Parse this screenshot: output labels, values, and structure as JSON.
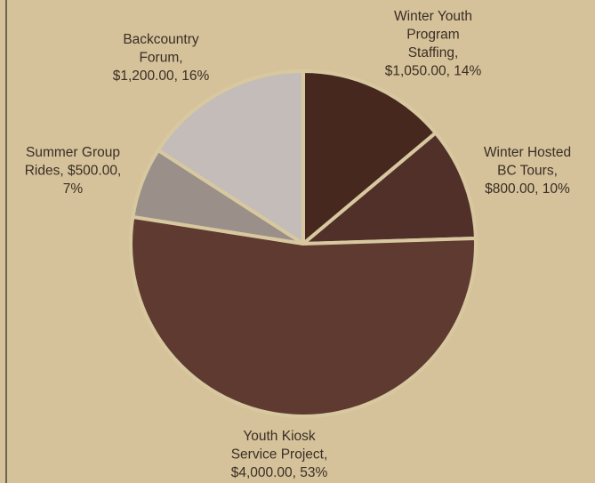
{
  "chart_data": {
    "type": "pie",
    "title": "",
    "slices": [
      {
        "label": "Winter Youth Program Staffing",
        "value": 1050.0,
        "percent": 14,
        "color": "#46281f",
        "label_lines": [
          "Winter Youth",
          "Program",
          "Staffing,",
          "$1,050.00, 14%"
        ]
      },
      {
        "label": "Winter Hosted BC Tours",
        "value": 800.0,
        "percent": 10,
        "color": "#52302a",
        "label_lines": [
          "Winter Hosted",
          "BC Tours,",
          "$800.00, 10%"
        ]
      },
      {
        "label": "Youth Kiosk Service Project",
        "value": 4000.0,
        "percent": 53,
        "color": "#5e3a30",
        "label_lines": [
          "Youth Kiosk",
          "Service Project,",
          "$4,000.00, 53%"
        ]
      },
      {
        "label": "Summer Group Rides",
        "value": 500.0,
        "percent": 7,
        "color": "#9b8f8a",
        "label_lines": [
          "Summer Group",
          "Rides, $500.00,",
          "7%"
        ]
      },
      {
        "label": "Backcountry Forum",
        "value": 1200.0,
        "percent": 16,
        "color": "#c3bcb8",
        "label_lines": [
          "Backcountry",
          "Forum,",
          "$1,200.00, 16%"
        ]
      }
    ],
    "legend": "none",
    "colors": {
      "background": "#d5c29a",
      "slice_border": "#d8c8a0",
      "label_text": "#3a2e25"
    }
  }
}
